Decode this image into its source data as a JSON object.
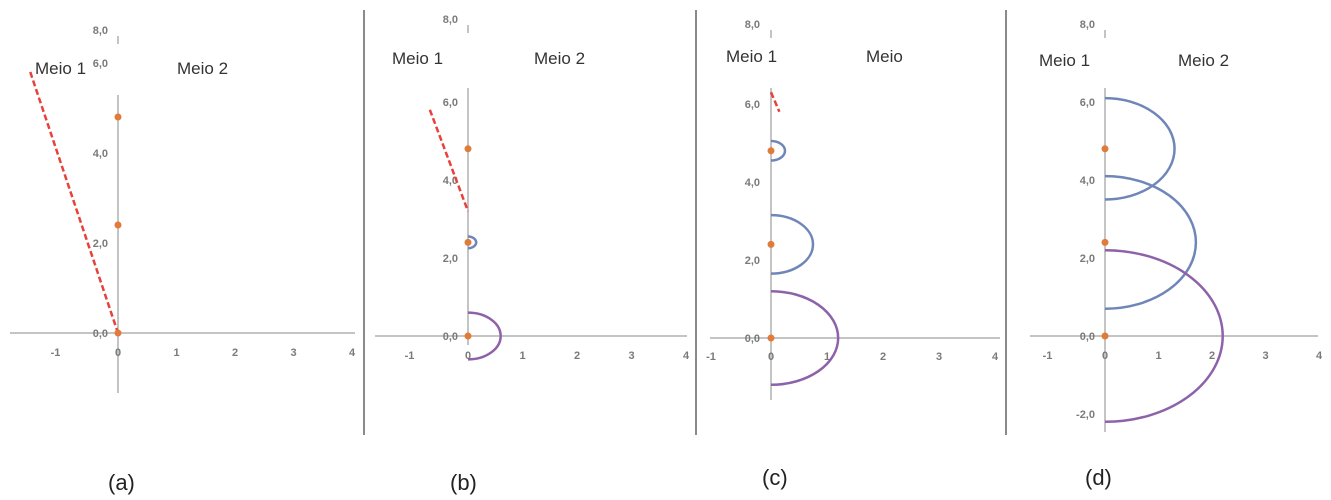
{
  "colors": {
    "axis": "#b0b0b0",
    "divider": "#8a8a8a",
    "ray": "#e8413a",
    "point": "#e07b39",
    "arc_blue": "#6f86b8",
    "arc_purple": "#8d62a8"
  },
  "panels": [
    {
      "caption": "(a)",
      "medium1_label": "Meio 1",
      "medium2_label": "Meio 2",
      "xticks": [
        "-1",
        "0",
        "1",
        "2",
        "3",
        "4"
      ],
      "yticks": [
        "0,0",
        "2,0",
        "4,0",
        "6,0",
        "8,0"
      ],
      "x_range": [
        -1.7,
        4
      ],
      "y_range": [
        -1.8,
        8
      ],
      "points": [
        [
          0,
          4.8
        ],
        [
          0,
          2.4
        ],
        [
          0,
          0
        ]
      ],
      "ray": [
        [
          -1.5,
          5.8
        ],
        [
          0,
          0
        ]
      ],
      "arcs": []
    },
    {
      "caption": "(b)",
      "medium1_label": "Meio 1",
      "medium2_label": "Meio 2",
      "xticks": [
        "-1",
        "0",
        "1",
        "2",
        "3",
        "4"
      ],
      "yticks": [
        "0,0",
        "2,0",
        "4,0",
        "6,0",
        "8,0"
      ],
      "x_range": [
        -1.7,
        4
      ],
      "y_range": [
        -1.8,
        8
      ],
      "points": [
        [
          0,
          4.8
        ],
        [
          0,
          2.4
        ],
        [
          0,
          0
        ]
      ],
      "ray": [
        [
          -0.7,
          5.8
        ],
        [
          0,
          3.2
        ]
      ],
      "arcs": [
        {
          "color": "arc_blue",
          "cx": 0,
          "cy": 2.4,
          "r": 0.15
        },
        {
          "color": "arc_purple",
          "cx": 0,
          "cy": 0,
          "r": 0.6
        }
      ]
    },
    {
      "caption": "(c)",
      "medium1_label": "Meio 1",
      "medium2_label": "Meio",
      "xticks": [
        "-1",
        "0",
        "1",
        "2",
        "3",
        "4"
      ],
      "yticks": [
        "0,0",
        "2,0",
        "4,0",
        "6,0",
        "8,0"
      ],
      "x_range": [
        -1.1,
        4
      ],
      "y_range": [
        -1.6,
        8
      ],
      "points": [
        [
          0,
          4.8
        ],
        [
          0,
          2.4
        ],
        [
          0,
          0
        ]
      ],
      "ray": [
        [
          0,
          6.3
        ],
        [
          0.15,
          5.8
        ]
      ],
      "arcs": [
        {
          "color": "arc_blue",
          "cx": 0,
          "cy": 4.8,
          "r": 0.25
        },
        {
          "color": "arc_blue",
          "cx": 0,
          "cy": 2.4,
          "r": 0.75
        },
        {
          "color": "arc_purple",
          "cx": 0,
          "cy": 0,
          "r": 1.2
        }
      ]
    },
    {
      "caption": "(d)",
      "medium1_label": "Meio 1",
      "medium2_label": "Meio 2",
      "xticks": [
        "-1",
        "0",
        "1",
        "2",
        "3",
        "4"
      ],
      "yticks": [
        "-2,0",
        "0,0",
        "2,0",
        "4,0",
        "6,0",
        "8,0"
      ],
      "x_range": [
        -1.2,
        4
      ],
      "y_range": [
        -2.5,
        8
      ],
      "points": [
        [
          0,
          4.8
        ],
        [
          0,
          2.4
        ],
        [
          0,
          0
        ]
      ],
      "ray": null,
      "arcs": [
        {
          "color": "arc_blue",
          "cx": 0,
          "cy": 4.8,
          "r": 1.3
        },
        {
          "color": "arc_blue",
          "cx": 0,
          "cy": 2.4,
          "r": 1.7
        },
        {
          "color": "arc_purple",
          "cx": 0,
          "cy": 0,
          "r": 2.2
        }
      ]
    }
  ]
}
